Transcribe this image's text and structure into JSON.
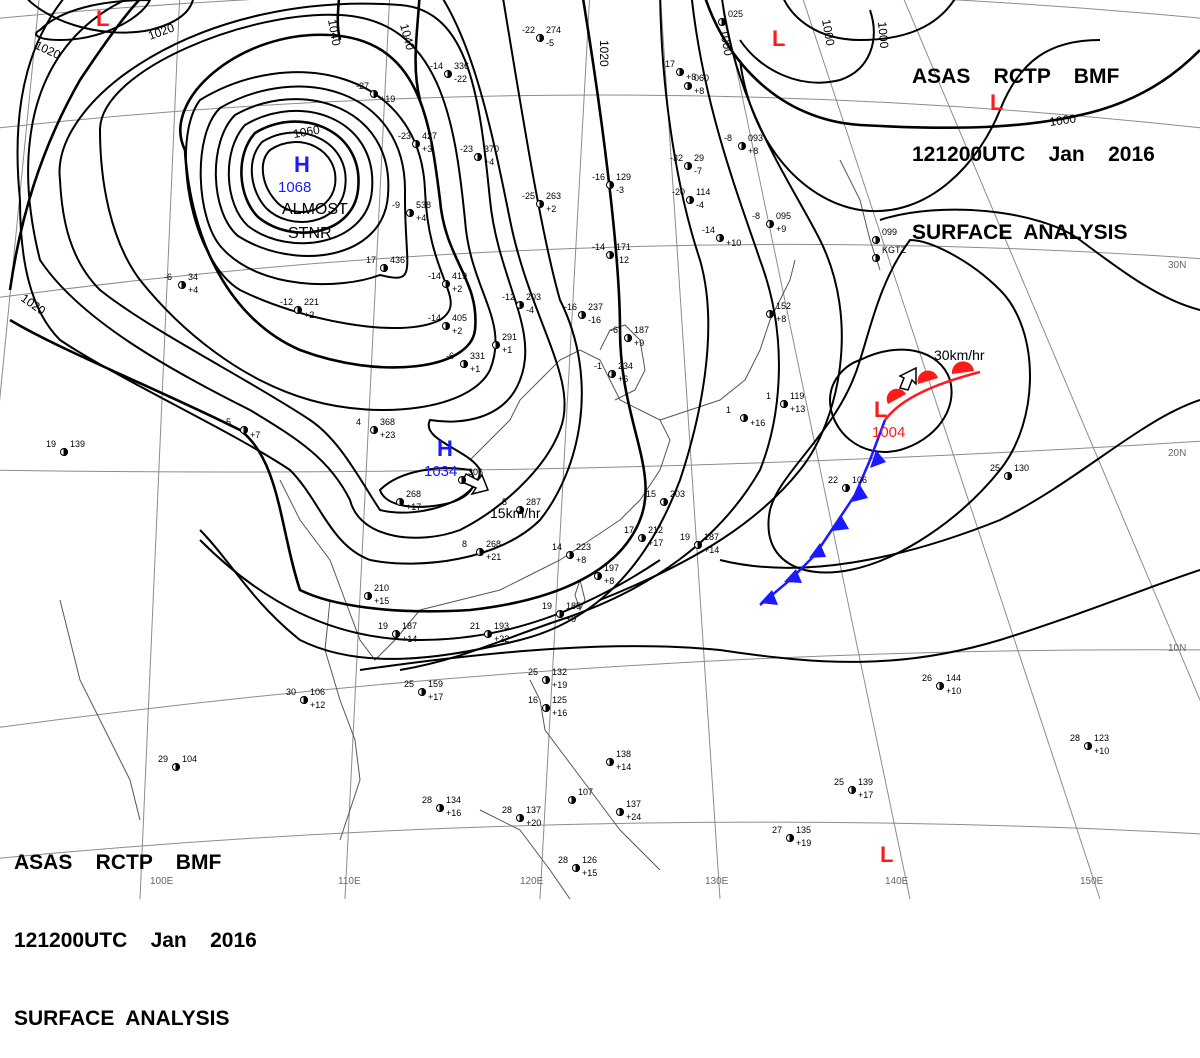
{
  "header": {
    "line1": "ASAS    RCTP    BMF",
    "line2": "121200UTC    Jan    2016",
    "line3": "SURFACE  ANALYSIS"
  },
  "pressure_centers": {
    "high_1": {
      "symbol": "H",
      "value": "1068",
      "note_1": "ALMOST",
      "note_2": "STNR"
    },
    "high_2": {
      "symbol": "H",
      "value": "1034",
      "speed": "15km/hr"
    },
    "low_1": {
      "symbol": "L",
      "value": "1004",
      "speed": "30km/hr"
    },
    "low_2": {
      "symbol": "L"
    },
    "low_3": {
      "symbol": "L"
    },
    "low_4": {
      "symbol": "L"
    },
    "low_5": {
      "symbol": "L"
    }
  },
  "isobar_labels": {
    "l1020_a": "1020",
    "l1020_b": "1020",
    "l1020_c": "1020",
    "l1020_d": "1020",
    "l1040_a": "1040",
    "l1040_b": "1040",
    "l1060": "1060",
    "l1000_a": "1000",
    "l1000_b": "1000",
    "l1000_c": "1000",
    "l1000_d": "1000"
  },
  "grid_labels": {
    "lat_30": "30N",
    "lat_20": "20N",
    "lat_10": "10N",
    "lon_100": "100E",
    "lon_110": "110E",
    "lon_120": "120E",
    "lon_130": "130E",
    "lon_140": "140E",
    "lon_150": "150E"
  },
  "stations": [
    {
      "t": "-14",
      "p": "336",
      "d": "-22"
    },
    {
      "t": "-22",
      "p": "274",
      "d": "-5"
    },
    {
      "t": "-27",
      "p": "",
      "d": "+19"
    },
    {
      "t": "-23",
      "p": "427",
      "d": "+3"
    },
    {
      "t": "-23",
      "p": "370",
      "d": "+4"
    },
    {
      "t": "-25",
      "p": "263",
      "d": "+2"
    },
    {
      "t": "-16",
      "p": "129",
      "d": "-3"
    },
    {
      "t": "-20",
      "p": "114",
      "d": "-4"
    },
    {
      "t": "-32",
      "p": "29",
      "d": "-7"
    },
    {
      "t": "-14",
      "p": "171",
      "d": "-12"
    },
    {
      "t": "-12",
      "p": "203",
      "d": "-4"
    },
    {
      "t": "-16",
      "p": "237",
      "d": "-16"
    },
    {
      "t": "-17",
      "p": "",
      "d": "+8"
    },
    {
      "t": "-6",
      "p": "187",
      "d": "+9"
    },
    {
      "t": "-12",
      "p": "221",
      "d": "+2"
    },
    {
      "t": "-14",
      "p": "405",
      "d": "+2"
    },
    {
      "t": "-14",
      "p": "419",
      "d": "+2"
    },
    {
      "t": "17",
      "p": "436",
      "d": ""
    },
    {
      "t": "-9",
      "p": "538",
      "d": "+4"
    },
    {
      "t": "-6",
      "p": "34",
      "d": "+4"
    },
    {
      "t": "-6",
      "p": "331",
      "d": "+1"
    },
    {
      "t": "",
      "p": "291",
      "d": "+1"
    },
    {
      "t": "-1",
      "p": "234",
      "d": "+6"
    },
    {
      "t": "4",
      "p": "368",
      "d": "+23"
    },
    {
      "t": "5",
      "p": "",
      "d": "+7"
    },
    {
      "t": "",
      "p": "306",
      "d": ""
    },
    {
      "t": "5",
      "p": "287",
      "d": ""
    },
    {
      "t": "",
      "p": "268",
      "d": "+17"
    },
    {
      "t": "8",
      "p": "268",
      "d": "+21"
    },
    {
      "t": "14",
      "p": "223",
      "d": "+8"
    },
    {
      "t": "17",
      "p": "212",
      "d": "+17"
    },
    {
      "t": "15",
      "p": "203",
      "d": ""
    },
    {
      "t": "19",
      "p": "187",
      "d": "+14"
    },
    {
      "t": "",
      "p": "197",
      "d": "+8"
    },
    {
      "t": "",
      "p": "210",
      "d": "+15"
    },
    {
      "t": "19",
      "p": "185",
      "d": "+9"
    },
    {
      "t": "19",
      "p": "187",
      "d": "+14"
    },
    {
      "t": "21",
      "p": "193",
      "d": "+22"
    },
    {
      "t": "22",
      "p": "106",
      "d": ""
    },
    {
      "t": "25",
      "p": "130",
      "d": ""
    },
    {
      "t": "25",
      "p": "132",
      "d": "+19"
    },
    {
      "t": "16",
      "p": "125",
      "d": "+16"
    },
    {
      "t": "25",
      "p": "159",
      "d": "+17"
    },
    {
      "t": "30",
      "p": "106",
      "d": "+12"
    },
    {
      "t": "26",
      "p": "144",
      "d": "+10"
    },
    {
      "t": "28",
      "p": "123",
      "d": "+10"
    },
    {
      "t": "29",
      "p": "104",
      "d": ""
    },
    {
      "t": "28",
      "p": "134",
      "d": "+16"
    },
    {
      "t": "28",
      "p": "137",
      "d": "+20"
    },
    {
      "t": "",
      "p": "107",
      "d": ""
    },
    {
      "t": "",
      "p": "138",
      "d": "+14"
    },
    {
      "t": "",
      "p": "137",
      "d": "+24"
    },
    {
      "t": "25",
      "p": "139",
      "d": "+17"
    },
    {
      "t": "27",
      "p": "135",
      "d": "+19"
    },
    {
      "t": "28",
      "p": "126",
      "d": "+15"
    },
    {
      "t": "19",
      "p": "139",
      "d": ""
    },
    {
      "t": "",
      "p": "099",
      "d": ""
    },
    {
      "t": "",
      "p": "KGTZ",
      "d": ""
    },
    {
      "t": "-8",
      "p": "095",
      "d": "+9"
    },
    {
      "t": "-8",
      "p": "093",
      "d": "+8"
    },
    {
      "t": "",
      "p": "060",
      "d": "+8"
    },
    {
      "t": "",
      "p": "025",
      "d": ""
    },
    {
      "t": "",
      "p": "152",
      "d": "+8"
    },
    {
      "t": "1",
      "p": "119",
      "d": "+13"
    },
    {
      "t": "1",
      "p": "",
      "d": "+16"
    },
    {
      "t": "-14",
      "p": "",
      "d": "+10"
    }
  ],
  "colors": {
    "isobar": "#000000",
    "grid": "#8c8c8c",
    "coast": "#555555",
    "high": "#1a1aff",
    "low": "#ff1a1a",
    "cold_front": "#1a1aff",
    "warm_front": "#ff1a1a"
  }
}
